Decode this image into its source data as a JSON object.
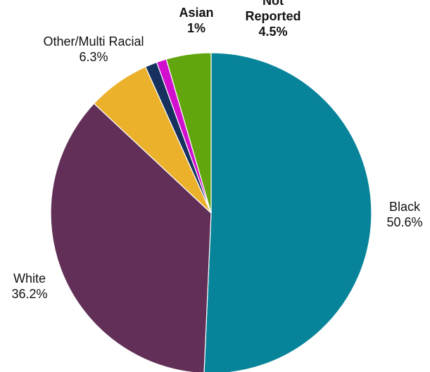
{
  "chart_data": {
    "type": "pie",
    "title": "",
    "start_angle_deg": 0,
    "direction": "clockwise",
    "slices": [
      {
        "label": "Black",
        "value": 50.6,
        "value_label": "50.6%",
        "color": "#08849a",
        "label_lines": [
          "Black"
        ],
        "label_weight": "normal"
      },
      {
        "label": "White",
        "value": 36.2,
        "value_label": "36.2%",
        "color": "#612f57",
        "label_lines": [
          "White"
        ],
        "label_weight": "normal"
      },
      {
        "label": "Other/Multi Racial",
        "value": 6.3,
        "value_label": "6.3%",
        "color": "#ebb12b",
        "label_lines": [
          "Other/Multi Racial"
        ],
        "label_weight": "normal"
      },
      {
        "label": "",
        "value": 1.2,
        "value_label": "",
        "color": "#17315e",
        "label_lines": [],
        "label_weight": "normal"
      },
      {
        "label": "Asian",
        "value": 1,
        "value_label": "1%",
        "color": "#d10fcf",
        "label_lines": [
          "Asian"
        ],
        "label_weight": "bold"
      },
      {
        "label": "Not Reported",
        "value": 4.5,
        "value_label": "4.5%",
        "color": "#62a60f",
        "label_lines": [
          "Not",
          "Reported"
        ],
        "label_weight": "bold"
      }
    ]
  }
}
